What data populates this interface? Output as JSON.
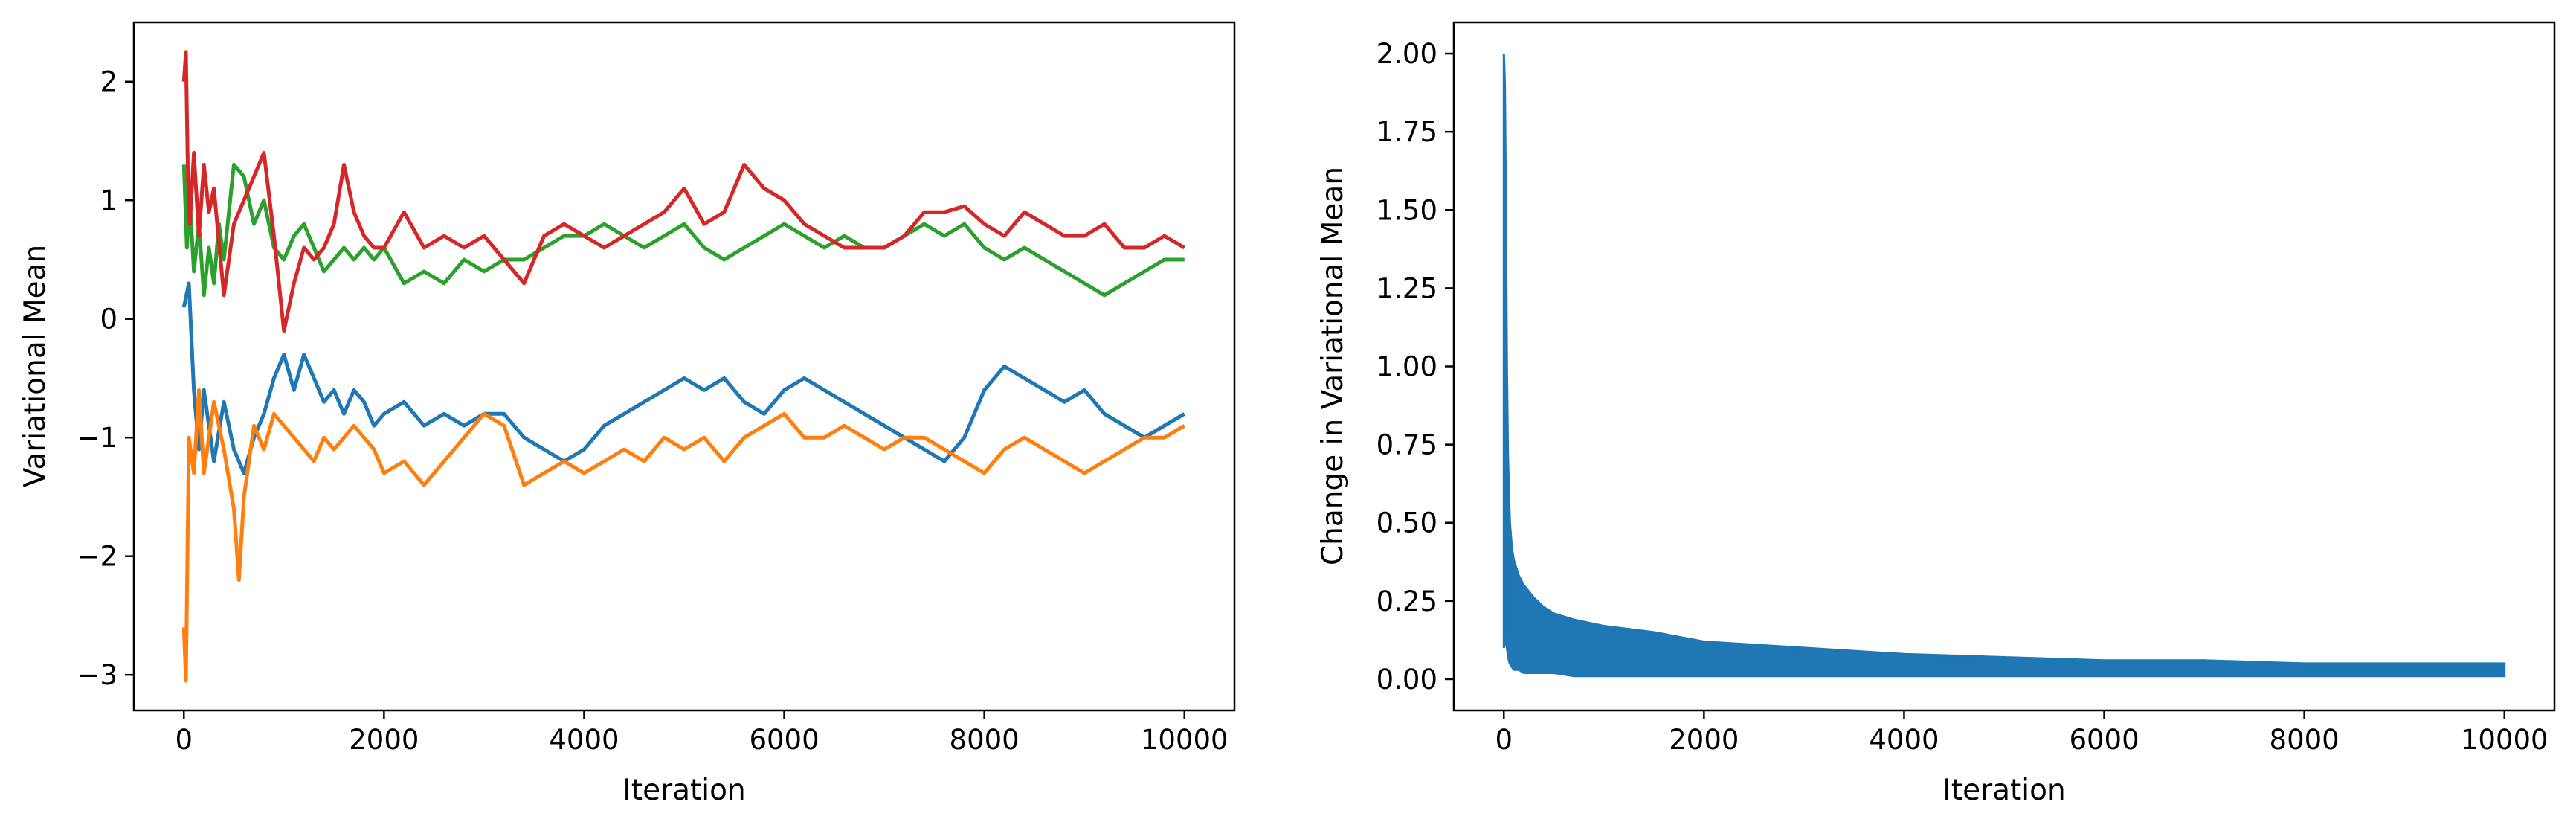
{
  "chart_data": [
    {
      "type": "line",
      "title": "",
      "xlabel": "Iteration",
      "ylabel": "Variational Mean",
      "xlim": [
        -500,
        10500
      ],
      "ylim": [
        -3.3,
        2.5
      ],
      "xticks": [
        0,
        2000,
        4000,
        6000,
        8000,
        10000
      ],
      "xtick_labels": [
        "0",
        "2000",
        "4000",
        "6000",
        "8000",
        "10000"
      ],
      "yticks": [
        -3,
        -2,
        -1,
        0,
        1,
        2
      ],
      "ytick_labels": [
        "−3",
        "−2",
        "−1",
        "0",
        "1",
        "2"
      ],
      "grid": false,
      "legend": "none",
      "series": [
        {
          "color": "#1f77b4",
          "x": [
            0,
            50,
            100,
            150,
            200,
            300,
            400,
            500,
            600,
            700,
            800,
            900,
            1000,
            1100,
            1200,
            1300,
            1400,
            1500,
            1600,
            1700,
            1800,
            1900,
            2000,
            2200,
            2400,
            2600,
            2800,
            3000,
            3200,
            3400,
            3600,
            3800,
            4000,
            4200,
            4400,
            4600,
            4800,
            5000,
            5200,
            5400,
            5600,
            5800,
            6000,
            6200,
            6400,
            6600,
            6800,
            7000,
            7200,
            7400,
            7600,
            7800,
            8000,
            8200,
            8400,
            8600,
            8800,
            9000,
            9200,
            9400,
            9600,
            9800,
            10000
          ],
          "values": [
            0.1,
            0.3,
            -0.6,
            -1.1,
            -0.6,
            -1.2,
            -0.7,
            -1.1,
            -1.3,
            -1.0,
            -0.8,
            -0.5,
            -0.3,
            -0.6,
            -0.3,
            -0.5,
            -0.7,
            -0.6,
            -0.8,
            -0.6,
            -0.7,
            -0.9,
            -0.8,
            -0.7,
            -0.9,
            -0.8,
            -0.9,
            -0.8,
            -0.8,
            -1.0,
            -1.1,
            -1.2,
            -1.1,
            -0.9,
            -0.8,
            -0.7,
            -0.6,
            -0.5,
            -0.6,
            -0.5,
            -0.7,
            -0.8,
            -0.6,
            -0.5,
            -0.6,
            -0.7,
            -0.8,
            -0.9,
            -1.0,
            -1.1,
            -1.2,
            -1.0,
            -0.6,
            -0.4,
            -0.5,
            -0.6,
            -0.7,
            -0.6,
            -0.8,
            -0.9,
            -1.0,
            -0.9,
            -0.8
          ]
        },
        {
          "color": "#ff7f0e",
          "x": [
            0,
            20,
            50,
            100,
            150,
            200,
            300,
            400,
            500,
            550,
            600,
            700,
            800,
            900,
            1000,
            1100,
            1200,
            1300,
            1400,
            1500,
            1600,
            1700,
            1800,
            1900,
            2000,
            2200,
            2400,
            2600,
            2800,
            3000,
            3200,
            3400,
            3600,
            3800,
            4000,
            4200,
            4400,
            4600,
            4800,
            5000,
            5200,
            5400,
            5600,
            5800,
            6000,
            6200,
            6400,
            6600,
            6800,
            7000,
            7200,
            7400,
            7600,
            7800,
            8000,
            8200,
            8400,
            8600,
            8800,
            9000,
            9200,
            9400,
            9600,
            9800,
            10000
          ],
          "values": [
            -2.6,
            -3.05,
            -1.0,
            -1.3,
            -0.6,
            -1.3,
            -0.7,
            -1.1,
            -1.6,
            -2.2,
            -1.5,
            -0.9,
            -1.1,
            -0.8,
            -0.9,
            -1.0,
            -1.1,
            -1.2,
            -1.0,
            -1.1,
            -1.0,
            -0.9,
            -1.0,
            -1.1,
            -1.3,
            -1.2,
            -1.4,
            -1.2,
            -1.0,
            -0.8,
            -0.9,
            -1.4,
            -1.3,
            -1.2,
            -1.3,
            -1.2,
            -1.1,
            -1.2,
            -1.0,
            -1.1,
            -1.0,
            -1.2,
            -1.0,
            -0.9,
            -0.8,
            -1.0,
            -1.0,
            -0.9,
            -1.0,
            -1.1,
            -1.0,
            -1.0,
            -1.1,
            -1.2,
            -1.3,
            -1.1,
            -1.0,
            -1.1,
            -1.2,
            -1.3,
            -1.2,
            -1.1,
            -1.0,
            -1.0,
            -0.9
          ]
        },
        {
          "color": "#2ca02c",
          "x": [
            0,
            30,
            60,
            100,
            150,
            200,
            250,
            300,
            350,
            400,
            500,
            600,
            700,
            800,
            900,
            1000,
            1100,
            1200,
            1300,
            1400,
            1500,
            1600,
            1700,
            1800,
            1900,
            2000,
            2200,
            2400,
            2600,
            2800,
            3000,
            3200,
            3400,
            3600,
            3800,
            4000,
            4200,
            4400,
            4600,
            4800,
            5000,
            5200,
            5400,
            5600,
            5800,
            6000,
            6200,
            6400,
            6600,
            6800,
            7000,
            7200,
            7400,
            7600,
            7800,
            8000,
            8200,
            8400,
            8600,
            8800,
            9000,
            9200,
            9400,
            9600,
            9800,
            10000
          ],
          "values": [
            1.3,
            0.6,
            1.0,
            0.4,
            0.8,
            0.2,
            0.6,
            0.3,
            0.8,
            0.5,
            1.3,
            1.2,
            0.8,
            1.0,
            0.6,
            0.5,
            0.7,
            0.8,
            0.6,
            0.4,
            0.5,
            0.6,
            0.5,
            0.6,
            0.5,
            0.6,
            0.3,
            0.4,
            0.3,
            0.5,
            0.4,
            0.5,
            0.5,
            0.6,
            0.7,
            0.7,
            0.8,
            0.7,
            0.6,
            0.7,
            0.8,
            0.6,
            0.5,
            0.6,
            0.7,
            0.8,
            0.7,
            0.6,
            0.7,
            0.6,
            0.6,
            0.7,
            0.8,
            0.7,
            0.8,
            0.6,
            0.5,
            0.6,
            0.5,
            0.4,
            0.3,
            0.2,
            0.3,
            0.4,
            0.5,
            0.5
          ]
        },
        {
          "color": "#d62728",
          "x": [
            0,
            20,
            40,
            60,
            100,
            150,
            200,
            250,
            300,
            400,
            500,
            600,
            700,
            800,
            900,
            1000,
            1100,
            1200,
            1300,
            1400,
            1500,
            1600,
            1700,
            1800,
            1900,
            2000,
            2200,
            2400,
            2600,
            2800,
            3000,
            3200,
            3400,
            3600,
            3800,
            4000,
            4200,
            4400,
            4600,
            4800,
            5000,
            5200,
            5400,
            5600,
            5800,
            6000,
            6200,
            6400,
            6600,
            6800,
            7000,
            7200,
            7400,
            7600,
            7800,
            8000,
            8200,
            8400,
            8600,
            8800,
            9000,
            9200,
            9400,
            9600,
            9800,
            10000
          ],
          "values": [
            2.0,
            2.25,
            1.2,
            0.8,
            1.4,
            0.7,
            1.3,
            0.9,
            1.1,
            0.2,
            0.8,
            1.0,
            1.2,
            1.4,
            0.7,
            -0.1,
            0.3,
            0.6,
            0.5,
            0.6,
            0.8,
            1.3,
            0.9,
            0.7,
            0.6,
            0.6,
            0.9,
            0.6,
            0.7,
            0.6,
            0.7,
            0.5,
            0.3,
            0.7,
            0.8,
            0.7,
            0.6,
            0.7,
            0.8,
            0.9,
            1.1,
            0.8,
            0.9,
            1.3,
            1.1,
            1.0,
            0.8,
            0.7,
            0.6,
            0.6,
            0.6,
            0.7,
            0.9,
            0.9,
            0.95,
            0.8,
            0.7,
            0.9,
            0.8,
            0.7,
            0.7,
            0.8,
            0.6,
            0.6,
            0.7,
            0.6
          ]
        }
      ]
    },
    {
      "type": "line",
      "title": "",
      "xlabel": "Iteration",
      "ylabel": "Change in Variational Mean",
      "xlim": [
        -500,
        10500
      ],
      "ylim": [
        -0.1,
        2.1
      ],
      "xticks": [
        0,
        2000,
        4000,
        6000,
        8000,
        10000
      ],
      "xtick_labels": [
        "0",
        "2000",
        "4000",
        "6000",
        "8000",
        "10000"
      ],
      "yticks": [
        0.0,
        0.25,
        0.5,
        0.75,
        1.0,
        1.25,
        1.5,
        1.75,
        2.0
      ],
      "ytick_labels": [
        "0.00",
        "0.25",
        "0.50",
        "0.75",
        "1.00",
        "1.25",
        "1.50",
        "1.75",
        "2.00"
      ],
      "grid": false,
      "legend": "none",
      "series": [
        {
          "color": "#1f77b4",
          "x": [
            0,
            10,
            20,
            30,
            40,
            50,
            60,
            80,
            100,
            150,
            200,
            300,
            400,
            500,
            700,
            1000,
            1500,
            2000,
            3000,
            4000,
            5000,
            6000,
            7000,
            8000,
            9000,
            10000
          ],
          "upper": [
            2.0,
            1.9,
            1.5,
            1.0,
            0.72,
            0.6,
            0.5,
            0.42,
            0.38,
            0.33,
            0.3,
            0.26,
            0.23,
            0.21,
            0.19,
            0.17,
            0.15,
            0.12,
            0.1,
            0.08,
            0.07,
            0.06,
            0.06,
            0.05,
            0.05,
            0.05
          ],
          "lower": [
            0.1,
            0.15,
            0.12,
            0.1,
            0.08,
            0.06,
            0.05,
            0.04,
            0.03,
            0.03,
            0.02,
            0.02,
            0.02,
            0.02,
            0.01,
            0.01,
            0.01,
            0.01,
            0.01,
            0.01,
            0.01,
            0.01,
            0.01,
            0.01,
            0.01,
            0.01
          ]
        }
      ]
    }
  ]
}
